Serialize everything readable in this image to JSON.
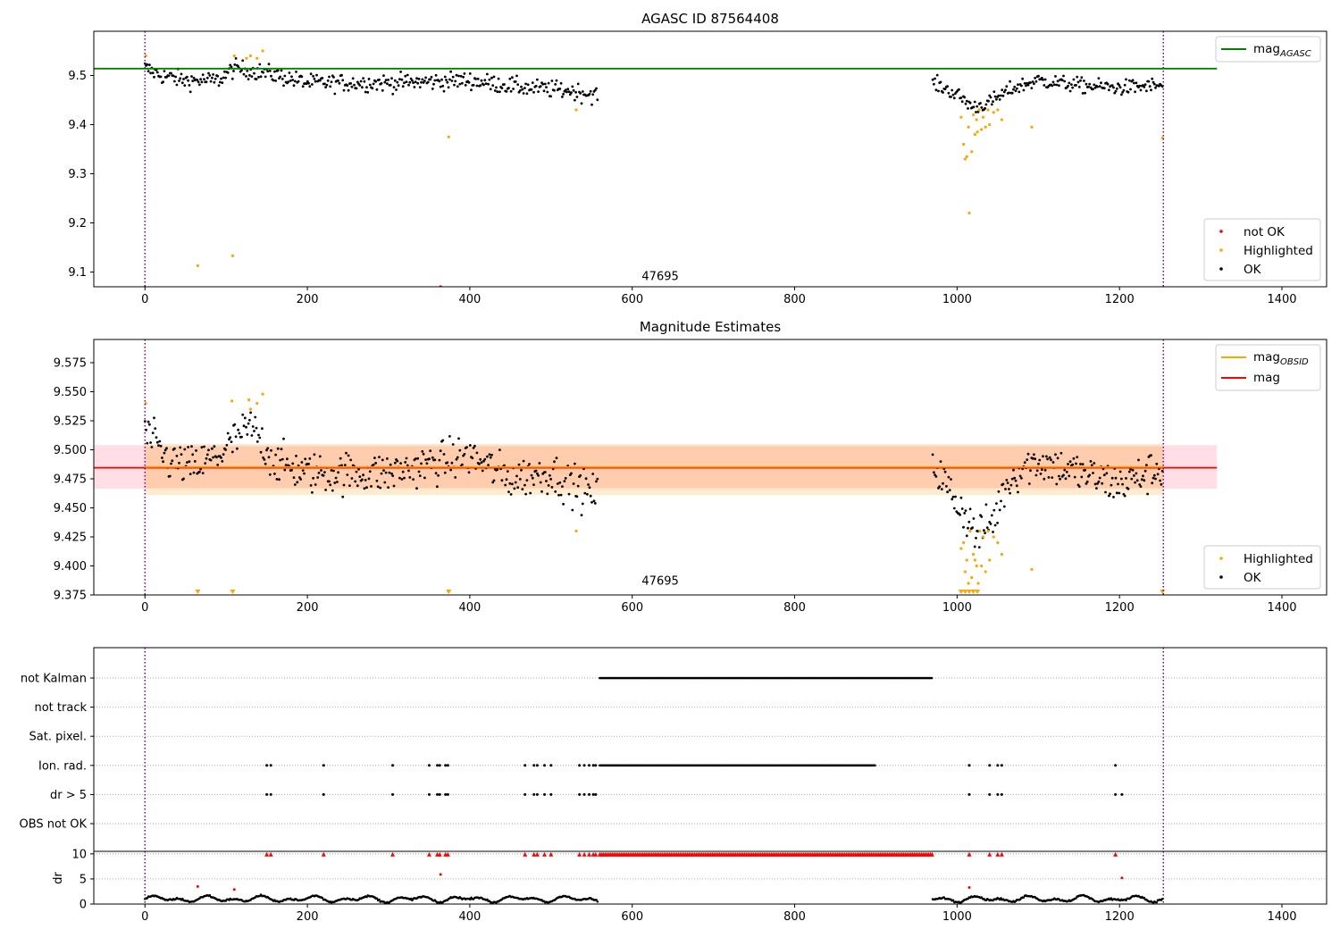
{
  "colors": {
    "ok": "#000000",
    "highlighted": "#ffa500",
    "not_ok": "#ff0000",
    "mag_agasc": "#008000",
    "mag_obsid": "#ffa500",
    "mag": "#ff0000",
    "obsid_line": "#800080"
  },
  "chart_data": [
    {
      "type": "scatter",
      "title": "AGASC ID 87564408",
      "xlim": [
        -63,
        1455
      ],
      "ylim": [
        9.07,
        9.59
      ],
      "xticks": [
        "0",
        "200",
        "400",
        "600",
        "800",
        "1000",
        "1200",
        "1400"
      ],
      "yticks": [
        "9.1",
        "9.2",
        "9.3",
        "9.4",
        "9.5"
      ],
      "grid": false,
      "obsid_lines_x": [
        0,
        1254
      ],
      "obsid_label": {
        "text": "47695",
        "x": 607,
        "y": 9.075
      },
      "mag_agasc": {
        "value": 9.514,
        "x": [
          -63,
          1320
        ]
      },
      "legend_lines": {
        "placement": "upper right",
        "entries": [
          {
            "label_main": "mag",
            "label_sub": "AGASC",
            "color": "#008000"
          }
        ]
      },
      "legend_points": {
        "placement": "lower right",
        "entries": [
          {
            "label": "not OK",
            "color": "#ff0000"
          },
          {
            "label": "Highlighted",
            "color": "#ffa500"
          },
          {
            "label": "OK",
            "color": "#000000"
          }
        ]
      },
      "ok_segments": [
        {
          "x": [
            0,
            20,
            50,
            90,
            110,
            150,
            200,
            300,
            400,
            470,
            520,
            558
          ],
          "y": [
            9.515,
            9.5,
            9.49,
            9.49,
            9.515,
            9.505,
            9.485,
            9.485,
            9.49,
            9.475,
            9.47,
            9.46
          ],
          "noise": 0.016,
          "step": 1.4
        },
        {
          "x": [
            970,
            990,
            1005,
            1020,
            1040,
            1070,
            1100,
            1150,
            1200,
            1254
          ],
          "y": [
            9.485,
            9.47,
            9.455,
            9.435,
            9.445,
            9.475,
            9.49,
            9.48,
            9.475,
            9.48
          ],
          "noise": 0.014,
          "step": 1.4
        }
      ],
      "highlighted_points": {
        "x": [
          1,
          65,
          108,
          110,
          125,
          130,
          138,
          145,
          374,
          531,
          1005,
          1008,
          1010,
          1012,
          1014,
          1015,
          1018,
          1020,
          1022,
          1024,
          1025,
          1027,
          1030,
          1032,
          1035,
          1038,
          1040,
          1045,
          1050,
          1055,
          1092,
          1253
        ],
        "y": [
          9.54,
          9.113,
          9.133,
          9.54,
          9.535,
          9.54,
          9.535,
          9.55,
          9.375,
          9.43,
          9.415,
          9.36,
          9.33,
          9.335,
          9.395,
          9.22,
          9.345,
          9.42,
          9.38,
          9.41,
          9.385,
          9.43,
          9.39,
          9.415,
          9.395,
          9.43,
          9.4,
          9.425,
          9.43,
          9.41,
          9.395,
          9.373
        ]
      },
      "not_ok_points": {
        "x": [
          364
        ],
        "y": [
          9.07
        ]
      }
    },
    {
      "type": "scatter",
      "title": "Magnitude Estimates",
      "xlim": [
        -63,
        1455
      ],
      "ylim": [
        9.375,
        9.595
      ],
      "xticks": [
        "0",
        "200",
        "400",
        "600",
        "800",
        "1000",
        "1200",
        "1400"
      ],
      "yticks": [
        "9.375",
        "9.400",
        "9.425",
        "9.450",
        "9.475",
        "9.500",
        "9.525",
        "9.550",
        "9.575"
      ],
      "grid": false,
      "obsid_lines_x": [
        0,
        1254
      ],
      "obsid_label": {
        "text": "47695",
        "x": 607,
        "y": 9.38
      },
      "mag": {
        "value": 9.4845,
        "band": [
          9.4665,
          9.504
        ],
        "x": [
          -63,
          1320
        ]
      },
      "mag_obsid": {
        "value": 9.4845,
        "band_outer": [
          9.461,
          9.505
        ],
        "band_inner": [
          9.467,
          9.503
        ],
        "x": [
          0,
          1254
        ]
      },
      "legend_lines": {
        "placement": "upper right",
        "entries": [
          {
            "label_main": "mag",
            "label_sub": "OBSID",
            "color": "#ffa500"
          },
          {
            "label_main": "mag",
            "label_sub": "",
            "color": "#ff0000"
          }
        ]
      },
      "legend_points": {
        "placement": "lower right",
        "entries": [
          {
            "label": "Highlighted",
            "color": "#ffa500"
          },
          {
            "label": "OK",
            "color": "#000000"
          }
        ]
      },
      "ok_segments": [
        {
          "x": [
            0,
            30,
            60,
            90,
            130,
            160,
            200,
            300,
            400,
            450,
            500,
            540,
            558
          ],
          "y": [
            9.515,
            9.49,
            9.485,
            9.495,
            9.52,
            9.49,
            9.48,
            9.48,
            9.495,
            9.475,
            9.48,
            9.465,
            9.46
          ],
          "noise": 0.016,
          "step": 1.4
        },
        {
          "x": [
            970,
            990,
            1010,
            1025,
            1045,
            1060,
            1080,
            1100,
            1150,
            1200,
            1254
          ],
          "y": [
            9.49,
            9.465,
            9.445,
            9.425,
            9.44,
            9.47,
            9.485,
            9.49,
            9.48,
            9.47,
            9.485
          ],
          "noise": 0.016,
          "step": 1.4
        }
      ],
      "highlighted_points": {
        "x": [
          1,
          107,
          128,
          130,
          138,
          145,
          531,
          1005,
          1008,
          1010,
          1012,
          1014,
          1016,
          1018,
          1020,
          1022,
          1024,
          1026,
          1028,
          1030,
          1032,
          1035,
          1038,
          1040,
          1045,
          1050,
          1055,
          1092
        ],
        "y": [
          9.54,
          9.542,
          9.543,
          9.535,
          9.54,
          9.548,
          9.43,
          9.415,
          9.42,
          9.395,
          9.405,
          9.385,
          9.43,
          9.39,
          9.41,
          9.405,
          9.4,
          9.385,
          9.43,
          9.4,
          9.425,
          9.395,
          9.43,
          9.405,
          9.425,
          9.42,
          9.41,
          9.397
        ]
      },
      "clipped_markers_x": [
        65,
        108,
        374,
        1005,
        1010,
        1015,
        1020,
        1025,
        1253
      ]
    },
    {
      "type": "scatter",
      "title": "",
      "xlim": [
        -63,
        1455
      ],
      "xticks": [
        "0",
        "200",
        "400",
        "600",
        "800",
        "1000",
        "1200",
        "1400"
      ],
      "obsid_lines_x": [
        0,
        1254
      ],
      "flag_rows": [
        "not Kalman",
        "not track",
        "Sat. pixel.",
        "Ion. rad.",
        "dr > 5",
        "OBS not OK"
      ],
      "flags": {
        "not Kalman": {
          "ranges": [
            [
              560,
              970
            ]
          ],
          "points": []
        },
        "not track": {
          "ranges": [],
          "points": []
        },
        "Sat. pixel.": {
          "ranges": [],
          "points": []
        },
        "Ion. rad.": {
          "ranges": [
            [
              560,
              900
            ]
          ],
          "points": [
            150,
            155,
            220,
            305,
            350,
            360,
            363,
            370,
            373,
            468,
            479,
            483,
            492,
            500,
            535,
            541,
            547,
            552,
            555,
            1015,
            1040,
            1050,
            1055,
            1195
          ]
        },
        "dr > 5": {
          "ranges": [],
          "points": [
            150,
            155,
            220,
            305,
            350,
            360,
            363,
            370,
            373,
            468,
            479,
            483,
            492,
            500,
            535,
            541,
            547,
            552,
            555,
            1015,
            1040,
            1050,
            1055,
            1195,
            1203
          ]
        },
        "OBS not OK": {
          "ranges": [],
          "points": []
        }
      },
      "dr_panel": {
        "ylabel": "dr",
        "ylim": [
          0,
          10.5
        ],
        "yticks": [
          "0",
          "5",
          "10"
        ],
        "gridlines_y": [
          0,
          5,
          10
        ],
        "clipped_range": [
          560,
          970
        ],
        "clipped_points": [
          150,
          155,
          220,
          305,
          350,
          360,
          363,
          370,
          373,
          468,
          479,
          483,
          492,
          500,
          535,
          541,
          547,
          552,
          555,
          1015,
          1040,
          1050,
          1055,
          1195
        ],
        "outliers": {
          "x": [
            65,
            110,
            364,
            1015,
            1203
          ],
          "y": [
            3.5,
            2.9,
            5.9,
            3.3,
            5.2
          ]
        },
        "segments": [
          [
            0,
            558
          ],
          [
            970,
            1254
          ]
        ],
        "level_mean": 1.0,
        "level_amp": 0.7
      }
    }
  ]
}
